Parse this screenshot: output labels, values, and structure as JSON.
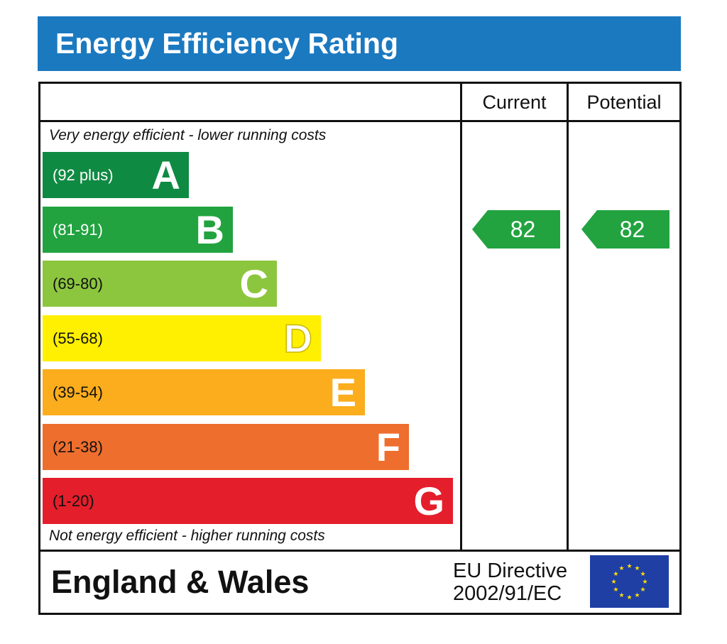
{
  "title": "Energy Efficiency Rating",
  "columns": {
    "current": "Current",
    "potential": "Potential"
  },
  "top_note": "Very energy efficient - lower running costs",
  "bottom_note": "Not energy efficient - higher running costs",
  "chart_data": {
    "type": "bar",
    "bands": [
      {
        "letter": "A",
        "range": "(92 plus)",
        "min": 92,
        "max": null,
        "color": "#0f8a43",
        "range_color": "#ffffff"
      },
      {
        "letter": "B",
        "range": "(81-91)",
        "min": 81,
        "max": 91,
        "color": "#22a340",
        "range_color": "#ffffff"
      },
      {
        "letter": "C",
        "range": "(69-80)",
        "min": 69,
        "max": 80,
        "color": "#8cc63e",
        "range_color": "#111111"
      },
      {
        "letter": "D",
        "range": "(55-68)",
        "min": 55,
        "max": 68,
        "color": "#ffef00",
        "range_color": "#111111"
      },
      {
        "letter": "E",
        "range": "(39-54)",
        "min": 39,
        "max": 54,
        "color": "#fbad1d",
        "range_color": "#111111"
      },
      {
        "letter": "F",
        "range": "(21-38)",
        "min": 21,
        "max": 38,
        "color": "#ee6e2d",
        "range_color": "#111111"
      },
      {
        "letter": "G",
        "range": "(1-20)",
        "min": 1,
        "max": 20,
        "color": "#e41e2b",
        "range_color": "#111111"
      }
    ],
    "current": {
      "value": 82,
      "band": "B",
      "color": "#22a340"
    },
    "potential": {
      "value": 82,
      "band": "B",
      "color": "#22a340"
    }
  },
  "footer": {
    "region": "England & Wales",
    "directive_line1": "EU Directive",
    "directive_line2": "2002/91/EC"
  },
  "icons": {
    "flag": "eu-flag-icon"
  }
}
